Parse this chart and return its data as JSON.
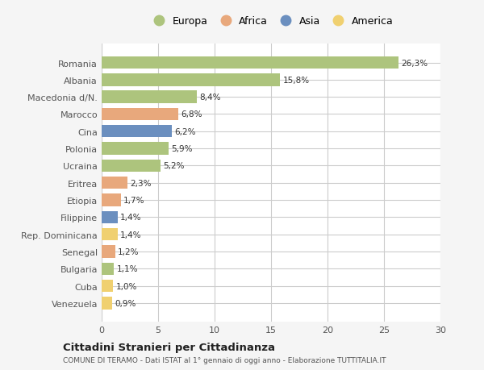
{
  "categories": [
    "Venezuela",
    "Cuba",
    "Bulgaria",
    "Senegal",
    "Rep. Dominicana",
    "Filippine",
    "Etiopia",
    "Eritrea",
    "Ucraina",
    "Polonia",
    "Cina",
    "Marocco",
    "Macedonia d/N.",
    "Albania",
    "Romania"
  ],
  "values": [
    0.9,
    1.0,
    1.1,
    1.2,
    1.4,
    1.4,
    1.7,
    2.3,
    5.2,
    5.9,
    6.2,
    6.8,
    8.4,
    15.8,
    26.3
  ],
  "continents": [
    "America",
    "America",
    "Europa",
    "Africa",
    "America",
    "Asia",
    "Africa",
    "Africa",
    "Europa",
    "Europa",
    "Asia",
    "Africa",
    "Europa",
    "Europa",
    "Europa"
  ],
  "labels": [
    "0,9%",
    "1,0%",
    "1,1%",
    "1,2%",
    "1,4%",
    "1,4%",
    "1,7%",
    "2,3%",
    "5,2%",
    "5,9%",
    "6,2%",
    "6,8%",
    "8,4%",
    "15,8%",
    "26,3%"
  ],
  "colors": {
    "Europa": "#adc47d",
    "Africa": "#e8a87c",
    "Asia": "#6b8fbf",
    "America": "#f0d070"
  },
  "legend_order": [
    "Europa",
    "Africa",
    "Asia",
    "America"
  ],
  "title1": "Cittadini Stranieri per Cittadinanza",
  "title2": "COMUNE DI TERAMO - Dati ISTAT al 1° gennaio di oggi anno - Elaborazione TUTTITALIA.IT",
  "xlim": [
    0,
    30
  ],
  "xticks": [
    0,
    5,
    10,
    15,
    20,
    25,
    30
  ],
  "background_color": "#f5f5f5",
  "bar_background": "#ffffff",
  "grid_color": "#cccccc"
}
